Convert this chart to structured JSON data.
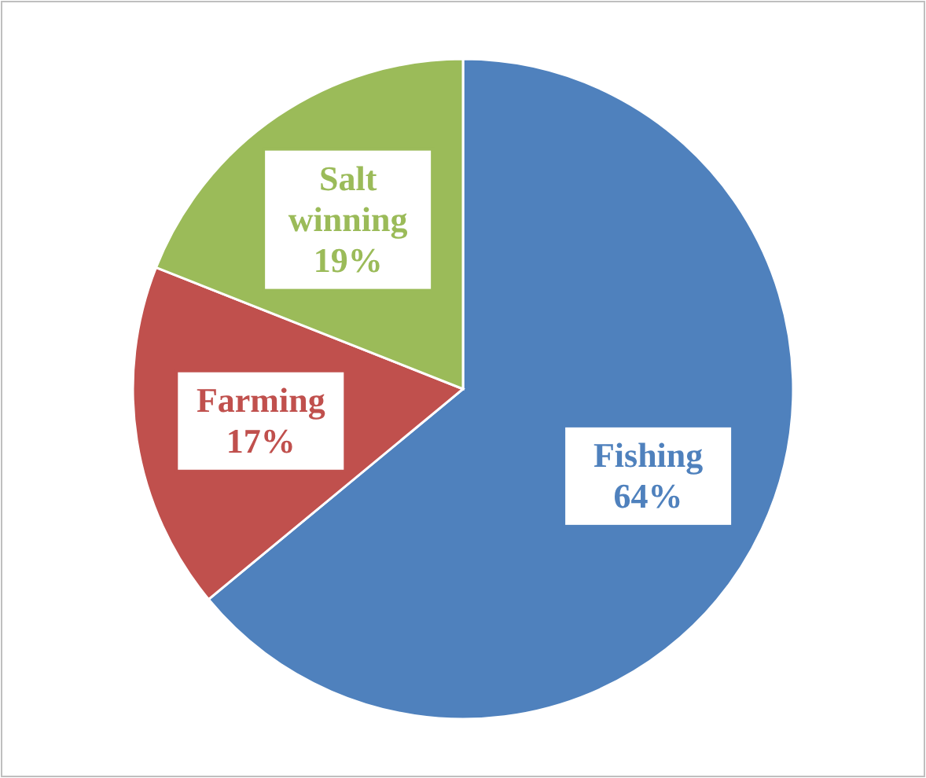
{
  "chart_data": {
    "type": "pie",
    "categories": [
      "Fishing",
      "Farming",
      "Salt winning"
    ],
    "values": [
      64,
      17,
      19
    ],
    "colors": [
      "#4f81bd",
      "#c0504d",
      "#9bbb59"
    ],
    "value_labels": [
      "64%",
      "17%",
      "19%"
    ],
    "legend": false
  }
}
